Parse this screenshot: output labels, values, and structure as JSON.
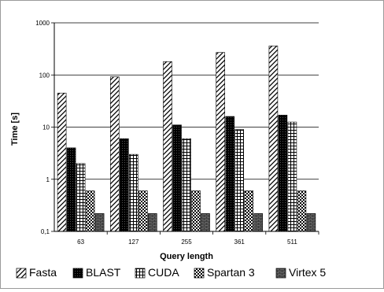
{
  "chart_data": {
    "type": "bar",
    "title": "",
    "xlabel": "Query length",
    "ylabel": "Time [s]",
    "y_scale": "log10",
    "ylim": [
      0.1,
      1000
    ],
    "y_ticks": [
      0.1,
      1,
      10,
      100,
      1000
    ],
    "y_tick_labels": [
      "0,1",
      "1",
      "10",
      "100",
      "1000"
    ],
    "grid": "horizontal major gridlines",
    "legend_position": "bottom",
    "categories": [
      "63",
      "127",
      "255",
      "361",
      "511"
    ],
    "series": [
      {
        "name": "Fasta",
        "values": [
          45,
          92,
          180,
          270,
          360
        ],
        "pattern": "diagonal-hatch",
        "color": "#000000"
      },
      {
        "name": "BLAST",
        "values": [
          4,
          6,
          11,
          16,
          17
        ],
        "pattern": "dense-black",
        "color": "#000000"
      },
      {
        "name": "CUDA",
        "values": [
          2,
          3,
          6,
          9,
          12.5
        ],
        "pattern": "grid-lines",
        "color": "#000000"
      },
      {
        "name": "Spartan 3",
        "values": [
          0.6,
          0.6,
          0.6,
          0.6,
          0.6
        ],
        "pattern": "checkerboard",
        "color": "#000000"
      },
      {
        "name": "Virtex 5",
        "values": [
          0.22,
          0.22,
          0.22,
          0.22,
          0.22
        ],
        "pattern": "dark-brick",
        "color": "#707070"
      }
    ]
  }
}
